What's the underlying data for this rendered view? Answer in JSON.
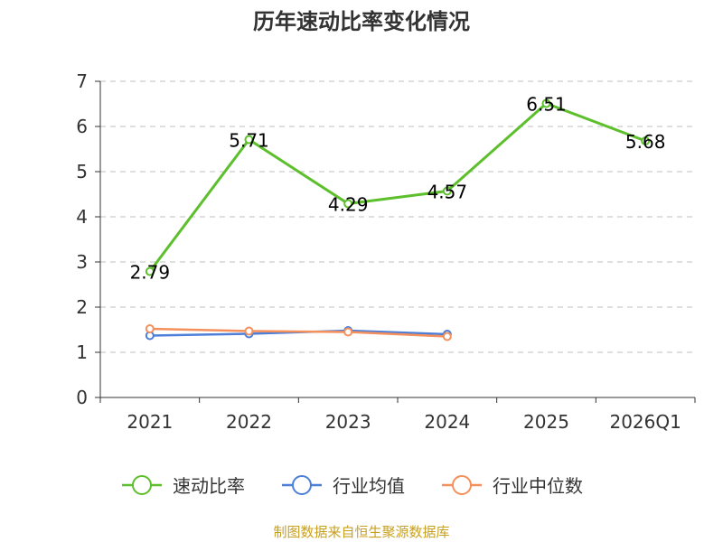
{
  "chart_data": {
    "type": "line",
    "title": "历年速动比率变化情况",
    "categories": [
      "2021",
      "2022",
      "2023",
      "2024",
      "2025",
      "2026Q1"
    ],
    "ylim": [
      0,
      7
    ],
    "yticks": [
      "0",
      "1",
      "2",
      "3",
      "4",
      "5",
      "6",
      "7"
    ],
    "grid": true,
    "legend_position": "bottom",
    "series": [
      {
        "name": "速动比率",
        "color": "#5cbf2b",
        "values": [
          2.79,
          5.71,
          4.29,
          4.57,
          6.51,
          5.68
        ],
        "labels": [
          "2.79",
          "5.71",
          "4.29",
          "4.57",
          "6.51",
          "5.68"
        ]
      },
      {
        "name": "行业均值",
        "color": "#4d7fd8",
        "values": [
          1.37,
          1.41,
          1.48,
          1.4,
          null,
          null
        ]
      },
      {
        "name": "行业中位数",
        "color": "#f5905c",
        "values": [
          1.52,
          1.47,
          1.45,
          1.35,
          null,
          null
        ]
      }
    ],
    "source": "制图数据来自恒生聚源数据库",
    "source_color": "#c8a020"
  }
}
